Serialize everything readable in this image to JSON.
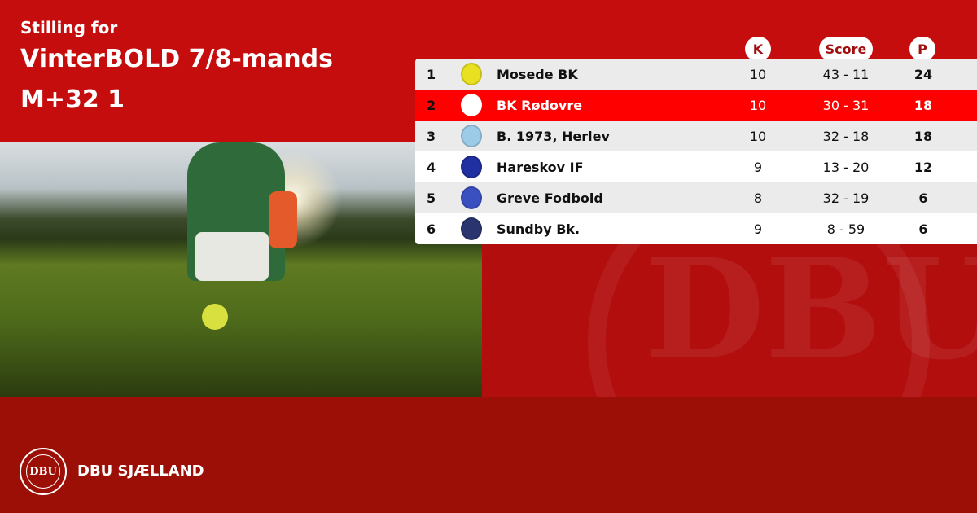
{
  "title": {
    "line1": "Stilling for",
    "line2": "VinterBOLD 7/8-mands",
    "line3": "M+32 1"
  },
  "headers": {
    "k": "K",
    "score": "Score",
    "p": "P"
  },
  "rows": [
    {
      "rank": "1",
      "team": "Mosede BK",
      "k": "10",
      "score": "43 - 11",
      "p": "24",
      "crest_color": "#e8e020"
    },
    {
      "rank": "2",
      "team": "BK Rødovre",
      "k": "10",
      "score": "30 - 31",
      "p": "18",
      "crest_color": "#ffffff",
      "highlight": true
    },
    {
      "rank": "3",
      "team": "B. 1973, Herlev",
      "k": "10",
      "score": "32 - 18",
      "p": "18",
      "crest_color": "#9ccbe8"
    },
    {
      "rank": "4",
      "team": "Hareskov IF",
      "k": "9",
      "score": "13 - 20",
      "p": "12",
      "crest_color": "#2030a0"
    },
    {
      "rank": "5",
      "team": "Greve Fodbold",
      "k": "8",
      "score": "32 - 19",
      "p": "6",
      "crest_color": "#3a50c0"
    },
    {
      "rank": "6",
      "team": "Sundby Bk.",
      "k": "9",
      "score": "8 - 59",
      "p": "6",
      "crest_color": "#2a3570"
    }
  ],
  "footer": {
    "logo_text": "DBU",
    "brand": "DBU SJÆLLAND"
  },
  "colors": {
    "primary": "#c50d0d",
    "highlight": "#ff0000",
    "footer": "#9c0f06"
  }
}
